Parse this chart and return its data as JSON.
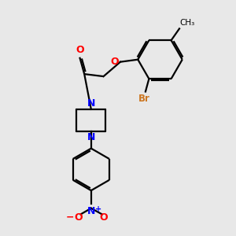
{
  "bg_color": "#e8e8e8",
  "bond_color": "#000000",
  "N_color": "#0000ff",
  "O_color": "#ff0000",
  "Br_color": "#cc7722",
  "line_width": 1.6,
  "figsize": [
    3.0,
    3.0
  ],
  "dpi": 100,
  "xlim": [
    0,
    10
  ],
  "ylim": [
    0,
    10
  ]
}
